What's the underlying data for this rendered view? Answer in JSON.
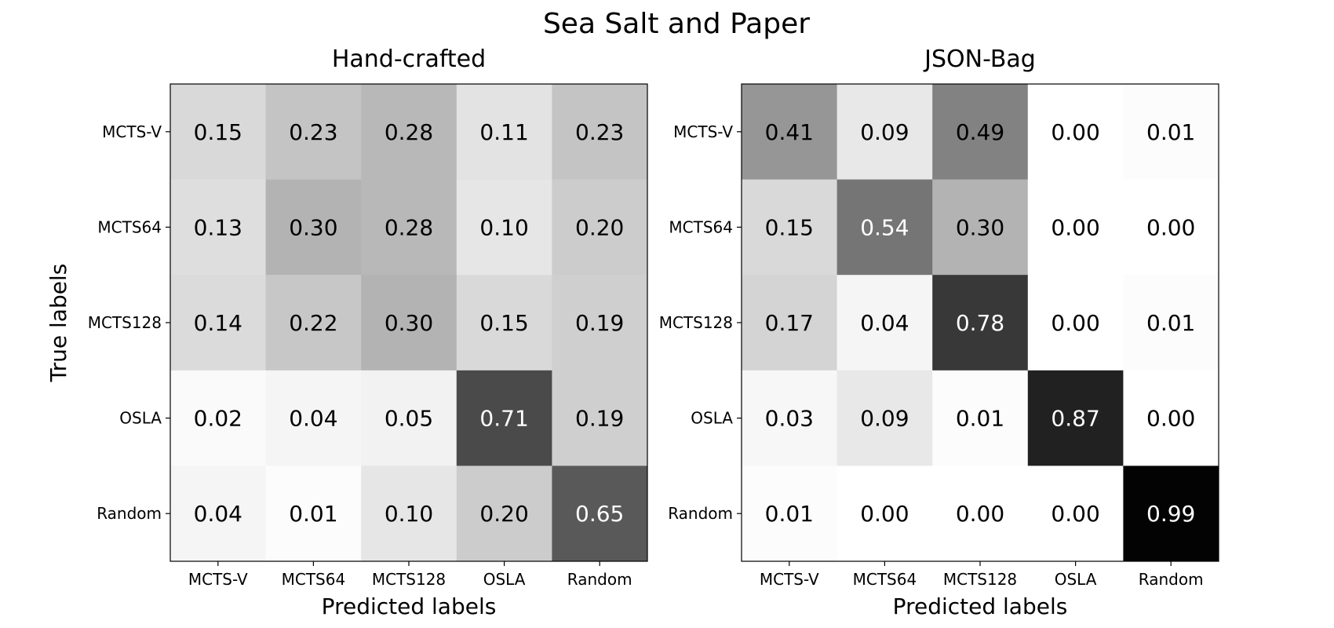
{
  "figure": {
    "title": "Sea Salt and Paper"
  },
  "chart_data": [
    {
      "type": "heatmap",
      "title": "Hand-crafted",
      "xlabel": "Predicted labels",
      "ylabel": "True labels",
      "x_categories": [
        "MCTS-V",
        "MCTS64",
        "MCTS128",
        "OSLA",
        "Random"
      ],
      "y_categories": [
        "MCTS-V",
        "MCTS64",
        "MCTS128",
        "OSLA",
        "Random"
      ],
      "values": [
        [
          0.15,
          0.23,
          0.28,
          0.11,
          0.23
        ],
        [
          0.13,
          0.3,
          0.28,
          0.1,
          0.2
        ],
        [
          0.14,
          0.22,
          0.3,
          0.15,
          0.19
        ],
        [
          0.02,
          0.04,
          0.05,
          0.71,
          0.19
        ],
        [
          0.04,
          0.01,
          0.1,
          0.2,
          0.65
        ]
      ],
      "value_labels": [
        [
          "0.15",
          "0.23",
          "0.28",
          "0.11",
          "0.23"
        ],
        [
          "0.13",
          "0.30",
          "0.28",
          "0.10",
          "0.20"
        ],
        [
          "0.14",
          "0.22",
          "0.30",
          "0.15",
          "0.19"
        ],
        [
          "0.02",
          "0.04",
          "0.05",
          "0.71",
          "0.19"
        ],
        [
          "0.04",
          "0.01",
          "0.10",
          "0.20",
          "0.65"
        ]
      ],
      "colormap": "greys",
      "vmin": 0,
      "vmax": 1
    },
    {
      "type": "heatmap",
      "title": "JSON-Bag",
      "xlabel": "Predicted labels",
      "ylabel": "",
      "x_categories": [
        "MCTS-V",
        "MCTS64",
        "MCTS128",
        "OSLA",
        "Random"
      ],
      "y_categories": [
        "MCTS-V",
        "MCTS64",
        "MCTS128",
        "OSLA",
        "Random"
      ],
      "values": [
        [
          0.41,
          0.09,
          0.49,
          0.0,
          0.01
        ],
        [
          0.15,
          0.54,
          0.3,
          0.0,
          0.0
        ],
        [
          0.17,
          0.04,
          0.78,
          0.0,
          0.01
        ],
        [
          0.03,
          0.09,
          0.01,
          0.87,
          0.0
        ],
        [
          0.01,
          0.0,
          0.0,
          0.0,
          0.99
        ]
      ],
      "value_labels": [
        [
          "0.41",
          "0.09",
          "0.49",
          "0.00",
          "0.01"
        ],
        [
          "0.15",
          "0.54",
          "0.30",
          "0.00",
          "0.00"
        ],
        [
          "0.17",
          "0.04",
          "0.78",
          "0.00",
          "0.01"
        ],
        [
          "0.03",
          "0.09",
          "0.01",
          "0.87",
          "0.00"
        ],
        [
          "0.01",
          "0.00",
          "0.00",
          "0.00",
          "0.99"
        ]
      ],
      "colormap": "greys",
      "vmin": 0,
      "vmax": 1
    }
  ]
}
